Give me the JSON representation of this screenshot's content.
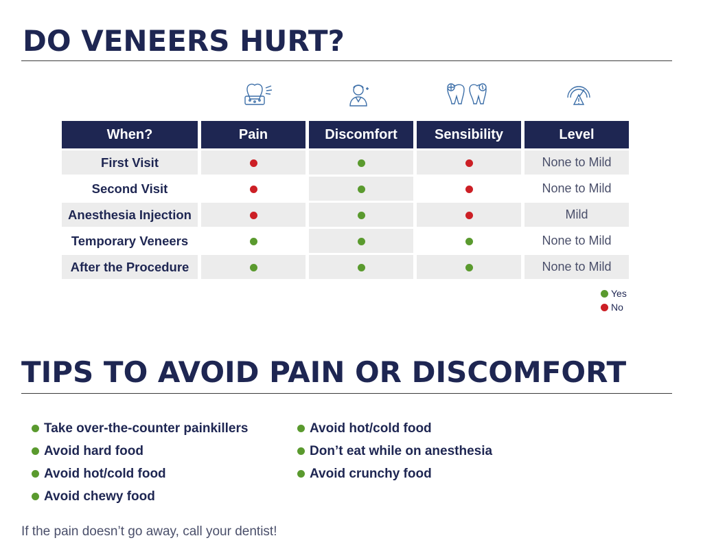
{
  "title": "DO VENEERS HURT?",
  "colors": {
    "navy": "#1e2652",
    "yes": "#5a9a2e",
    "no": "#cc1f25",
    "shade": "#ececec"
  },
  "icons": [
    "tooth-pain-icon",
    "person-discomfort-icon",
    "teeth-sensitivity-icon",
    "gauge-warning-icon"
  ],
  "table": {
    "headers": [
      "When?",
      "Pain",
      "Discomfort",
      "Sensibility",
      "Level"
    ],
    "rows": [
      {
        "when": "First Visit",
        "pain": "no",
        "discomfort": "yes",
        "sensibility": "no",
        "level": "None to Mild"
      },
      {
        "when": "Second Visit",
        "pain": "no",
        "discomfort": "yes",
        "sensibility": "no",
        "level": "None to Mild"
      },
      {
        "when": "Anesthesia Injection",
        "pain": "no",
        "discomfort": "yes",
        "sensibility": "no",
        "level": "Mild"
      },
      {
        "when": "Temporary Veneers",
        "pain": "yes",
        "discomfort": "yes",
        "sensibility": "yes",
        "level": "None to Mild"
      },
      {
        "when": "After the Procedure",
        "pain": "yes",
        "discomfort": "yes",
        "sensibility": "yes",
        "level": "None to Mild"
      }
    ]
  },
  "legend": {
    "yes": "Yes",
    "no": "No"
  },
  "tips_title": "TIPS TO AVOID PAIN OR DISCOMFORT",
  "tips": {
    "column1": [
      "Take over-the-counter painkillers",
      "Avoid hard food",
      "Avoid hot/cold food",
      "Avoid chewy food"
    ],
    "column2": [
      "Avoid hot/cold food",
      "Don’t eat while on anesthesia",
      "Avoid crunchy food"
    ]
  },
  "footer": "If the pain doesn’t go away, call your dentist!"
}
